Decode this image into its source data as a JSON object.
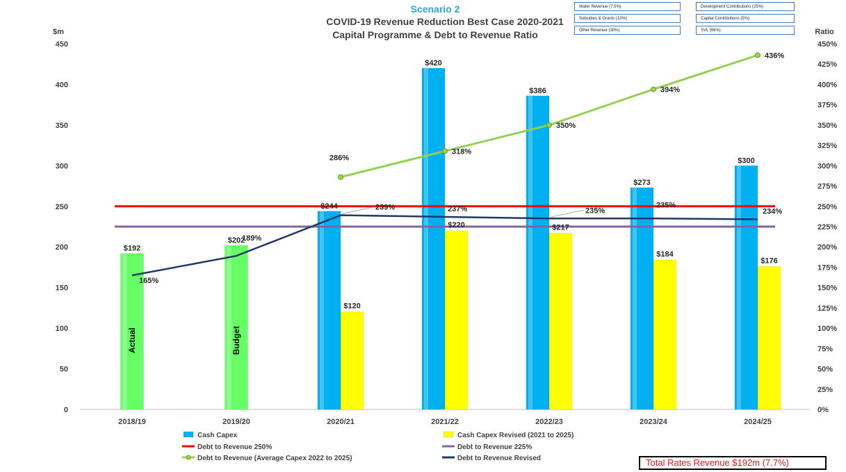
{
  "chart_data": {
    "type": "bar",
    "scenario_title": "Scenario 2",
    "title_line1": "COVID-19 Revenue Reduction Best Case 2020-2021",
    "title_line2": "Capital Programme & Debt to Revenue Ratio",
    "left_axis_label": "$m",
    "right_axis_label": "Ratio",
    "categories": [
      "2018/19",
      "2019/20",
      "2020/21",
      "2021/22",
      "2022/23",
      "2023/24",
      "2024/25"
    ],
    "left_ylim": [
      0,
      450
    ],
    "left_ticks": [
      0,
      50,
      100,
      150,
      200,
      250,
      300,
      350,
      400,
      450
    ],
    "right_ylim": [
      0,
      450
    ],
    "right_ticks": [
      "0%",
      "25%",
      "50%",
      "75%",
      "100%",
      "125%",
      "150%",
      "175%",
      "200%",
      "225%",
      "250%",
      "275%",
      "300%",
      "325%",
      "350%",
      "375%",
      "400%",
      "425%",
      "450%"
    ],
    "bar_series": [
      {
        "name": "Cash Capex",
        "color": "#00b0f0",
        "values": [
          192,
          202,
          244,
          420,
          386,
          273,
          300
        ],
        "value_labels": [
          "$192",
          "$202",
          "$244",
          "$420",
          "$386",
          "$273",
          "$300"
        ],
        "bar_colors": [
          "#66ff66",
          "#66ff66",
          "#00b0f0",
          "#00b0f0",
          "#00b0f0",
          "#00b0f0",
          "#00b0f0"
        ],
        "in_bar_labels": [
          "Actual",
          "Budget",
          "",
          "",
          "",
          "",
          ""
        ]
      },
      {
        "name": "Cash Capex Revised (2021 to 2025)",
        "color": "#ffff00",
        "values": [
          null,
          null,
          120,
          220,
          217,
          184,
          176
        ],
        "value_labels": [
          "",
          "",
          "$120",
          "$220",
          "$217",
          "$184",
          "$176"
        ]
      }
    ],
    "line_series": [
      {
        "name": "Debt to Revenue 250%",
        "color": "#ff0000",
        "kind": "flat",
        "value": 250
      },
      {
        "name": "Debt to Revenue 225%",
        "color": "#8064a2",
        "kind": "flat",
        "value": 225
      },
      {
        "name": "Debt to Revenue (Average Capex 2022 to 2025)",
        "color": "#92d050",
        "kind": "line",
        "values": [
          null,
          null,
          286,
          318,
          350,
          394,
          436
        ],
        "value_labels": [
          "",
          "",
          "286%",
          "318%",
          "350%",
          "394%",
          "436%"
        ]
      },
      {
        "name": "Debt to Revenue Revised",
        "color": "#1f3864",
        "kind": "line",
        "values": [
          165,
          189,
          239,
          237,
          235,
          235,
          234
        ],
        "value_labels": [
          "165%",
          "189%",
          "239%",
          "237%",
          "235%",
          "235%",
          "234%"
        ]
      }
    ],
    "legend_position": "bottom",
    "grid": false
  },
  "revenue_bubbles": [
    "Water Revenue (7.5%)",
    "Development Contributions (25%)",
    "Subsidies & Grants (10%)",
    "Capital Contributions (5%)",
    "Other Revenue (30%)",
    "SVL (66%)"
  ],
  "rates_box_text": "Total Rates Revenue $192m (7.7%)"
}
